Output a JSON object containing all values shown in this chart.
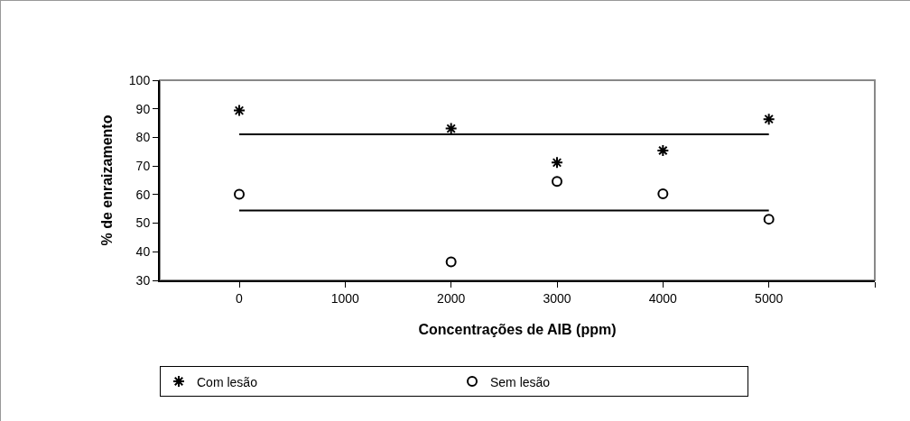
{
  "chart_data": {
    "type": "scatter",
    "xlabel": "Concentrações de AIB (ppm)",
    "ylabel": "% de enraizamento",
    "x": [
      0,
      2000,
      3000,
      4000,
      5000
    ],
    "series": [
      {
        "name": "Com lesão",
        "color": "#000000",
        "marker": "cross",
        "values": [
          89.4,
          83.1,
          71.2,
          75.4,
          86.4
        ]
      },
      {
        "name": "Sem lesão",
        "color": "#000000",
        "marker": "circle",
        "values": [
          60.1,
          36.5,
          64.6,
          60.3,
          51.4
        ]
      }
    ],
    "ref_lines": [
      {
        "axis": "y",
        "value": 81.1,
        "color": "#000000",
        "line_style": "solid"
      },
      {
        "axis": "y",
        "value": 54.4,
        "color": "#000000",
        "line_style": "solid"
      }
    ],
    "xlim": [
      -750,
      6000
    ],
    "xticks": [
      0,
      1000,
      2000,
      3000,
      4000,
      5000,
      {
        "value": 6000,
        "label": null
      }
    ],
    "ylim": [
      30,
      100
    ],
    "yticks": [
      30,
      40,
      50,
      60,
      70,
      80,
      90,
      100
    ],
    "grid": false,
    "legend": "bottom"
  }
}
